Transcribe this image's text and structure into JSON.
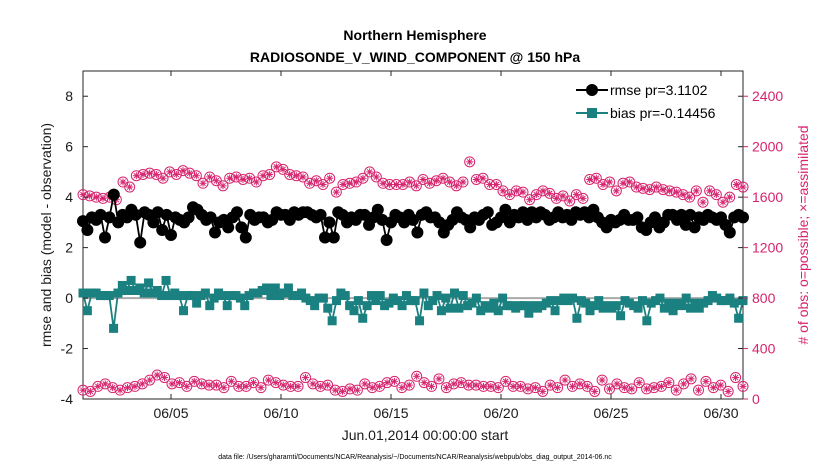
{
  "chart_data": {
    "type": "line",
    "title": "Northern Hemisphere",
    "subtitle": "RADIOSONDE_V_WIND_COMPONENT @ 150 hPa",
    "xlabel": "Jun.01,2014 00:00:00 start",
    "ylabel": "rmse and bias (model - observation)",
    "ylabel_right": "# of obs: o=possible; ×=assimilated",
    "xlim": [
      1,
      31
    ],
    "ylim": [
      -4,
      9
    ],
    "ylim_right": [
      0,
      2600
    ],
    "x_ticks": [
      5,
      10,
      15,
      20,
      25,
      30
    ],
    "x_tick_labels": [
      "06/05",
      "06/10",
      "06/15",
      "06/20",
      "06/25",
      "06/30"
    ],
    "y_ticks": [
      -4,
      -2,
      0,
      2,
      4,
      6,
      8
    ],
    "y_tick_labels": [
      "-4",
      "-2",
      "0",
      "2",
      "4",
      "6",
      "8"
    ],
    "y_ticks_right": [
      0,
      400,
      800,
      1200,
      1600,
      2000,
      2400
    ],
    "y_tick_labels_right": [
      "0",
      "400",
      "800",
      "1200",
      "1600",
      "2000",
      "2400"
    ],
    "zero_line": 0,
    "legend_position": "top-right",
    "footnote": "data file: /Users/gharamti/Documents/NCAR/Reanalysis/~/Documents/NCAR/Reanalysis/webpub/obs_diag_output_2014-06.nc",
    "colors": {
      "rmse": "#000000",
      "bias": "#1a8080",
      "obs": "#d6246e",
      "zero": "#aaaaaa"
    },
    "series": [
      {
        "name": "rmse pr=3.1102",
        "axis": "left",
        "values": [
          3.05,
          2.7,
          3.2,
          3.1,
          3.3,
          2.4,
          3.2,
          4.1,
          3.0,
          3.3,
          3.2,
          3.5,
          3.3,
          2.2,
          3.4,
          3.3,
          3.0,
          3.4,
          2.7,
          3.3,
          2.5,
          3.2,
          3.1,
          3.0,
          3.2,
          3.6,
          3.5,
          3.3,
          3.1,
          3.2,
          2.6,
          3.0,
          3.1,
          2.8,
          3.2,
          3.4,
          2.8,
          2.4,
          3.3,
          3.1,
          3.2,
          3.2,
          3.0,
          3.1,
          3.4,
          3.3,
          3.3,
          3.1,
          3.4,
          3.3,
          3.4,
          3.4,
          3.3,
          3.2,
          3.3,
          2.4,
          3.0,
          2.4,
          3.4,
          3.3,
          3.0,
          3.2,
          3.1,
          3.3,
          3.3,
          2.9,
          3.2,
          3.5,
          3.1,
          2.3,
          3.0,
          3.3,
          3.2,
          3.0,
          3.3,
          3.1,
          2.6,
          3.3,
          3.4,
          3.2,
          3.2,
          3.0,
          2.6,
          2.9,
          3.1,
          3.4,
          3.2,
          3.1,
          2.8,
          3.2,
          3.1,
          3.3,
          3.4,
          2.9,
          3.0,
          3.2,
          3.5,
          3.0,
          3.3,
          3.2,
          3.4,
          3.1,
          3.4,
          3.2,
          3.4,
          3.3,
          3.1,
          3.2,
          3.4,
          3.2,
          3.3,
          3.1,
          3.4,
          3.3,
          3.4,
          3.2,
          3.5,
          3.2,
          3.0,
          2.8,
          3.1,
          3.0,
          3.1,
          3.3,
          3.1,
          3.1,
          3.2,
          2.8,
          2.7,
          3.0,
          3.2,
          2.8,
          3.0,
          3.3,
          3.3,
          3.1,
          3.3,
          2.9,
          3.3,
          2.8,
          3.2,
          3.1,
          3.3,
          3.2,
          3.1,
          3.2,
          2.9,
          2.6,
          3.2,
          3.3,
          3.2
        ],
        "marker": "circle"
      },
      {
        "name": "bias pr=-0.14456",
        "axis": "left",
        "values": [
          0.2,
          -0.5,
          0.2,
          0.2,
          0.1,
          0.1,
          0.1,
          -1.2,
          0.2,
          0.5,
          0.3,
          0.7,
          0.3,
          0.4,
          0.2,
          0.6,
          0.2,
          0.3,
          0.1,
          0.7,
          0.1,
          0.2,
          0.1,
          -0.5,
          0.1,
          0.1,
          -0.2,
          0.1,
          0.2,
          -0.3,
          0.0,
          0.2,
          0.1,
          -0.3,
          0.1,
          0.1,
          0.0,
          -0.3,
          0.1,
          0.2,
          0.2,
          0.3,
          0.4,
          0.1,
          0.4,
          0.1,
          0.2,
          0.4,
          0.1,
          0.1,
          0.2,
          0.0,
          -0.1,
          -0.3,
          0.0,
          0.0,
          -0.4,
          -0.9,
          -0.1,
          0.2,
          0.1,
          -0.3,
          -0.5,
          -0.1,
          -0.8,
          -0.3,
          0.1,
          -0.1,
          0.1,
          -0.3,
          -0.2,
          0.0,
          -0.1,
          -0.3,
          0.1,
          -0.1,
          -0.1,
          -0.9,
          0.2,
          -0.3,
          -0.1,
          0.1,
          -0.5,
          0.0,
          -0.4,
          0.2,
          -0.4,
          0.1,
          -0.3,
          -0.2,
          0.0,
          -0.5,
          -0.3,
          -0.4,
          -0.2,
          -0.5,
          0.0,
          -0.3,
          -0.3,
          -0.4,
          -0.3,
          -0.3,
          -0.6,
          -0.3,
          -0.4,
          -0.3,
          -0.2,
          -0.1,
          -0.5,
          -0.1,
          0.0,
          -0.1,
          0.0,
          -0.8,
          -0.1,
          -0.2,
          -0.5,
          -0.3,
          -0.1,
          -0.4,
          -0.3,
          -0.4,
          -0.3,
          -0.7,
          -0.1,
          -0.2,
          -0.3,
          -0.4,
          -0.1,
          -0.9,
          -0.2,
          -0.1,
          0.0,
          -0.4,
          -0.2,
          -0.5,
          -0.2,
          -0.3,
          0.0,
          -0.4,
          -0.2,
          -0.4,
          -0.2,
          -0.1,
          0.1,
          0.0,
          -0.1,
          -0.1,
          0.0,
          -0.2,
          -0.8,
          -0.1
        ],
        "marker": "square"
      },
      {
        "name": "obs possible",
        "axis": "right",
        "values": [
          1620,
          1610,
          1600,
          1590,
          1600,
          1580,
          1720,
          1680,
          1770,
          1780,
          1790,
          1780,
          1750,
          1800,
          1780,
          1810,
          1790,
          1770,
          1710,
          1760,
          1730,
          1690,
          1750,
          1760,
          1740,
          1750,
          1720,
          1770,
          1780,
          1840,
          1820,
          1780,
          1770,
          1760,
          1710,
          1730,
          1700,
          1750,
          1640,
          1700,
          1710,
          1720,
          1750,
          1800,
          1760,
          1710,
          1700,
          1700,
          1700,
          1720,
          1690,
          1740,
          1710,
          1730,
          1750,
          1720,
          1690,
          1720,
          1880,
          1740,
          1750,
          1700,
          1700,
          1650,
          1620,
          1650,
          1640,
          1580,
          1620,
          1650,
          1630,
          1590,
          1610,
          1570,
          1620,
          1590,
          1740,
          1750,
          1700,
          1720,
          1650,
          1710,
          1720,
          1680,
          1670,
          1660,
          1680,
          1660,
          1650,
          1640,
          1620,
          1600,
          1650,
          1560,
          1650,
          1620,
          1560,
          1600,
          1700,
          1680
        ],
        "marker": "circle-open"
      },
      {
        "name": "obs possible (lower)",
        "axis": "right",
        "values": [
          70,
          60,
          100,
          120,
          90,
          70,
          90,
          100,
          120,
          150,
          190,
          170,
          120,
          130,
          100,
          140,
          120,
          110,
          110,
          90,
          140,
          100,
          100,
          130,
          90,
          150,
          130,
          110,
          100,
          100,
          170,
          120,
          100,
          110,
          70,
          60,
          80,
          70,
          120,
          90,
          100,
          130,
          140,
          90,
          110,
          180,
          130,
          100,
          160,
          90,
          120,
          130,
          110,
          110,
          100,
          100,
          90,
          140,
          100,
          100,
          80,
          90,
          60,
          110,
          90,
          150,
          100,
          120,
          100,
          60,
          150,
          80,
          120,
          90,
          80,
          130,
          80,
          90,
          100,
          130,
          70,
          120,
          160,
          70,
          140,
          90,
          110,
          60,
          170,
          100
        ],
        "marker": "circle-open"
      }
    ],
    "obs_possible_x_count": 100,
    "obs_lower_x_count": 90
  }
}
